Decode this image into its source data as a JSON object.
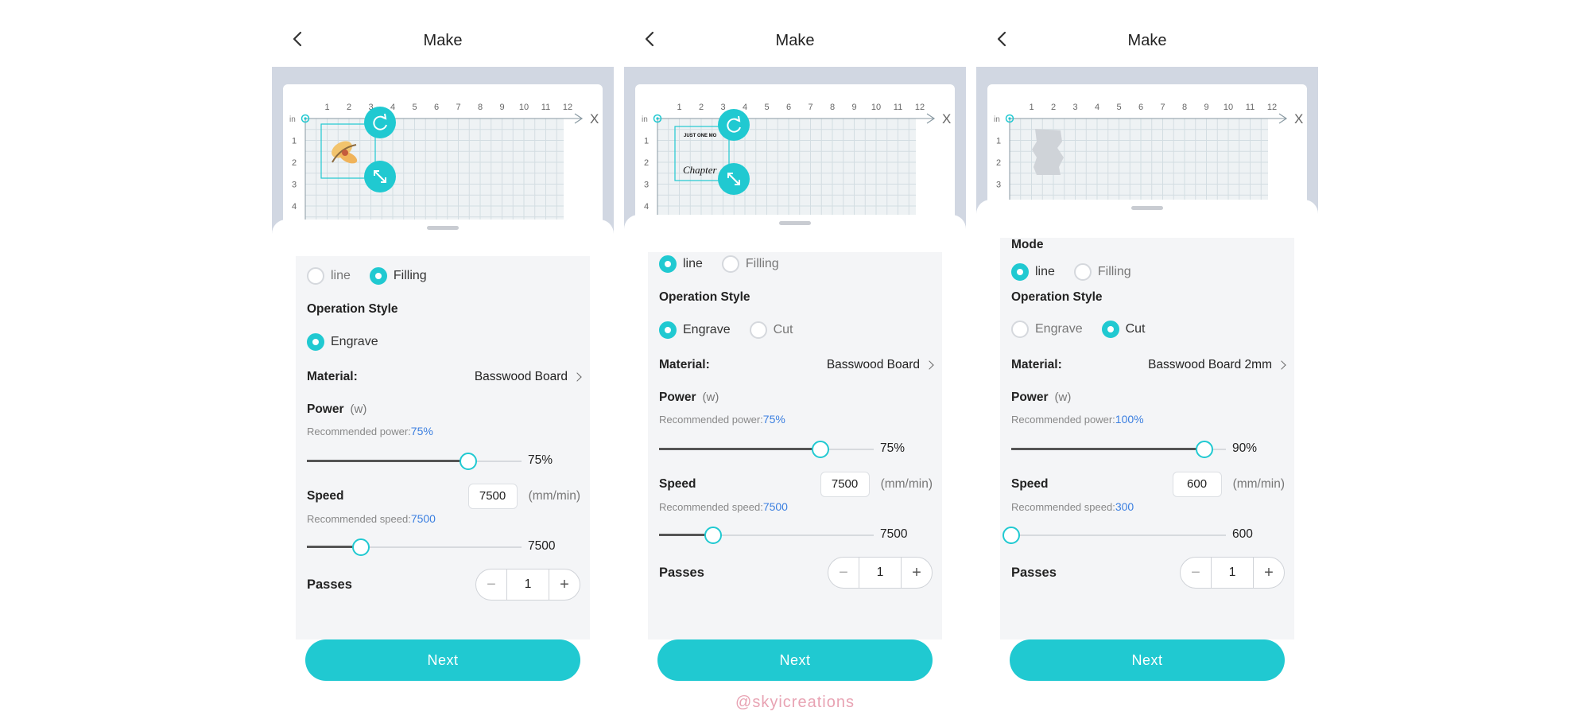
{
  "watermark": "@skyicreations",
  "colors": {
    "accent": "#20c9d1",
    "link": "#3b7fe0",
    "canvas_bg": "#d1d7e2"
  },
  "screens": [
    {
      "title": "Make",
      "mode": {
        "label": "",
        "options": [
          "line",
          "Filling"
        ],
        "selected": 1
      },
      "operation_style": {
        "label": "Operation Style",
        "options": [
          "Engrave"
        ],
        "selected": 0
      },
      "material": {
        "label": "Material:",
        "value": "Basswood Board"
      },
      "power": {
        "label": "Power",
        "unit": "(w)",
        "rec_label": "Recommended power:",
        "rec_value": "75%",
        "value_label": "75%",
        "fraction": 0.75
      },
      "speed": {
        "label": "Speed",
        "input": "7500",
        "unit": "(mm/min)",
        "rec_label": "Recommended speed:",
        "rec_value": "7500",
        "value_label": "7500",
        "fraction": 0.25
      },
      "passes": {
        "label": "Passes",
        "value": "1",
        "minus": "−",
        "plus": "+"
      },
      "next": "Next",
      "canvas": {
        "x_ticks": [
          "1",
          "2",
          "3",
          "4",
          "5",
          "6",
          "7",
          "8",
          "9",
          "10",
          "11",
          "12"
        ],
        "y_ticks": [
          "1",
          "2",
          "3",
          "4"
        ],
        "unit": "in",
        "axis_x": "X",
        "design_text": []
      }
    },
    {
      "title": "Make",
      "mode": {
        "label": "",
        "options": [
          "line",
          "Filling"
        ],
        "selected": 0
      },
      "operation_style": {
        "label": "Operation Style",
        "options": [
          "Engrave",
          "Cut"
        ],
        "selected": 0
      },
      "material": {
        "label": "Material:",
        "value": "Basswood Board"
      },
      "power": {
        "label": "Power",
        "unit": "(w)",
        "rec_label": "Recommended power:",
        "rec_value": "75%",
        "value_label": "75%",
        "fraction": 0.75
      },
      "speed": {
        "label": "Speed",
        "input": "7500",
        "unit": "(mm/min)",
        "rec_label": "Recommended speed:",
        "rec_value": "7500",
        "value_label": "7500",
        "fraction": 0.25
      },
      "passes": {
        "label": "Passes",
        "value": "1",
        "minus": "−",
        "plus": "+"
      },
      "next": "Next",
      "canvas": {
        "x_ticks": [
          "1",
          "2",
          "3",
          "4",
          "5",
          "6",
          "7",
          "8",
          "9",
          "10",
          "11",
          "12"
        ],
        "y_ticks": [
          "1",
          "2",
          "3",
          "4"
        ],
        "unit": "in",
        "axis_x": "X",
        "design_text": [
          "JUST ONE MO",
          "Chapter"
        ]
      }
    },
    {
      "title": "Make",
      "mode": {
        "label": "Mode",
        "options": [
          "line",
          "Filling"
        ],
        "selected": 0
      },
      "operation_style": {
        "label": "Operation Style",
        "options": [
          "Engrave",
          "Cut"
        ],
        "selected": 1
      },
      "material": {
        "label": "Material:",
        "value": "Basswood Board 2mm"
      },
      "power": {
        "label": "Power",
        "unit": "(w)",
        "rec_label": "Recommended power:",
        "rec_value": "100%",
        "value_label": "90%",
        "fraction": 0.9
      },
      "speed": {
        "label": "Speed",
        "input": "600",
        "unit": "(mm/min)",
        "rec_label": "Recommended speed:",
        "rec_value": "300",
        "value_label": "600",
        "fraction": 0.0
      },
      "passes": {
        "label": "Passes",
        "value": "1",
        "minus": "−",
        "plus": "+"
      },
      "next": "Next",
      "canvas": {
        "x_ticks": [
          "1",
          "2",
          "3",
          "4",
          "5",
          "6",
          "7",
          "8",
          "9",
          "10",
          "11",
          "12"
        ],
        "y_ticks": [
          "1",
          "2",
          "3"
        ],
        "unit": "in",
        "axis_x": "X",
        "design_text": []
      }
    }
  ]
}
